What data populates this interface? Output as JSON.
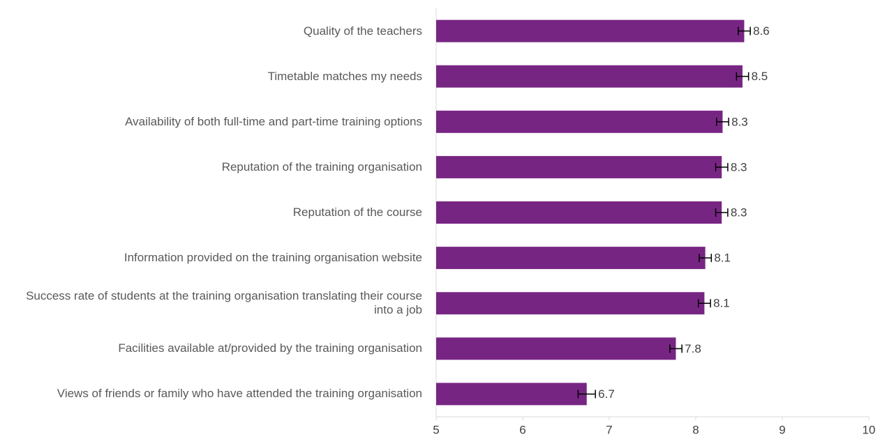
{
  "chart_data": {
    "type": "bar",
    "orientation": "horizontal",
    "categories": [
      "Quality of the teachers",
      "Timetable matches my needs",
      "Availability of both full-time and part-time training options",
      "Reputation of the training organisation",
      "Reputation of the course",
      "Information provided on the training organisation website",
      "Success rate of students at the training organisation translating their course into a job",
      "Facilities available at/provided by the training organisation",
      "Views of friends or family who have attended the training organisation"
    ],
    "values": [
      8.56,
      8.54,
      8.31,
      8.3,
      8.3,
      8.11,
      8.1,
      7.77,
      6.74
    ],
    "value_labels": [
      "8.6",
      "8.5",
      "8.3",
      "8.3",
      "8.3",
      "8.1",
      "8.1",
      "7.8",
      "6.7"
    ],
    "errors": [
      0.07,
      0.07,
      0.07,
      0.07,
      0.07,
      0.07,
      0.07,
      0.07,
      0.1
    ],
    "color": "#772583",
    "xlim": [
      5,
      10
    ],
    "xticks": [
      5,
      6,
      7,
      8,
      9,
      10
    ],
    "grid": false
  }
}
